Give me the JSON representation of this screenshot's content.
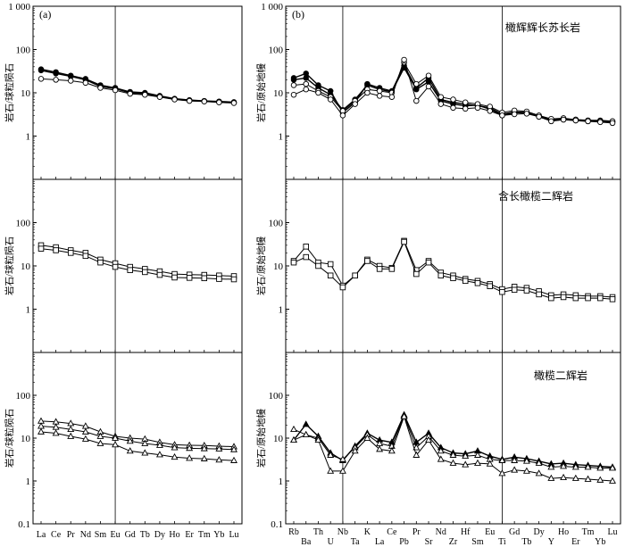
{
  "chart_data": {
    "type": "line",
    "panels_left_tag": "(a)",
    "panels_right_tag": "(b)",
    "ylim": [
      0.1,
      1000
    ],
    "yscale": "log",
    "yticks": [
      "1 000",
      "100",
      "10",
      "1",
      "0.1"
    ],
    "left_ylabel": "岩石/球粒陨石",
    "right_ylabel": "岩石/原始地幔",
    "left_x": [
      "La",
      "Ce",
      "Pr",
      "Nd",
      "Sm",
      "Eu",
      "Gd",
      "Tb",
      "Dy",
      "Ho",
      "Er",
      "Tm",
      "Yb",
      "Lu"
    ],
    "right_x": [
      "Rb",
      "Ba",
      "Th",
      "U",
      "Nb",
      "Ta",
      "K",
      "La",
      "Ce",
      "Pb",
      "Pr",
      "Sr",
      "Nd",
      "Zr",
      "Hf",
      "Sm",
      "Eu",
      "Ti",
      "Gd",
      "Tb",
      "Dy",
      "Y",
      "Ho",
      "Er",
      "Tm",
      "Yb",
      "Lu"
    ],
    "rows": [
      {
        "rock": "橄辉辉长苏长岩",
        "marker": "circle",
        "left_series": [
          {
            "values": [
              35,
              30,
              25,
              21,
              15,
              13,
              10.5,
              10,
              8.5,
              7.3,
              6.8,
              6.5,
              6.3,
              6.1
            ],
            "filled": true
          },
          {
            "values": [
              33,
              28,
              24,
              20,
              14,
              12.5,
              10,
              9.5,
              8.2,
              7.1,
              6.6,
              6.4,
              6.1,
              5.9
            ],
            "filled": true
          },
          {
            "values": [
              21,
              20,
              19,
              17,
              13,
              11.5,
              9.5,
              9,
              8,
              7,
              6.5,
              6.3,
              6,
              5.8
            ],
            "filled": false
          }
        ],
        "right_series": [
          {
            "values": [
              22,
              28,
              15,
              11,
              3.5,
              6,
              16,
              13,
              11,
              42,
              13,
              22,
              7,
              6,
              5.5,
              5,
              4.5,
              3.2,
              3.6,
              3.5,
              2.8,
              2.3,
              2.4,
              2.3,
              2.2,
              2.2,
              2.1
            ],
            "filled": true
          },
          {
            "values": [
              20,
              22,
              13,
              9,
              4,
              7,
              15,
              12,
              10.5,
              38,
              12,
              18,
              6.5,
              5.5,
              5,
              5.2,
              4.2,
              3.0,
              3.5,
              3.4,
              2.9,
              2.4,
              2.5,
              2.4,
              2.3,
              2.3,
              2.2
            ],
            "filled": true
          },
          {
            "values": [
              15,
              16,
              11,
              8,
              3.8,
              6.5,
              12,
              11,
              10,
              50,
              16,
              25,
              8,
              7,
              6,
              5.5,
              4.8,
              3.5,
              3.9,
              3.7,
              3.0,
              2.5,
              2.6,
              2.4,
              2.3,
              2.2,
              2.2
            ],
            "filled": false
          },
          {
            "values": [
              9,
              12,
              10,
              7,
              3.0,
              5.5,
              10,
              8.5,
              8,
              58,
              6.5,
              14,
              5.5,
              4.5,
              4.3,
              4.5,
              3.8,
              3.0,
              3.2,
              3.3,
              2.8,
              2.2,
              2.4,
              2.3,
              2.2,
              2.1,
              2.0
            ],
            "filled": false
          }
        ]
      },
      {
        "rock": "含长橄榄二辉岩",
        "marker": "square",
        "left_series": [
          {
            "values": [
              30,
              27,
              23,
              20,
              14,
              11.5,
              9.5,
              8.5,
              7.5,
              6.5,
              6.3,
              6.2,
              6,
              5.8
            ],
            "filled": false
          },
          {
            "values": [
              25,
              23,
              20,
              17,
              12,
              9.5,
              8,
              7.2,
              6.2,
              5.4,
              5.3,
              5.2,
              5,
              4.9
            ],
            "filled": false
          }
        ],
        "right_series": [
          {
            "values": [
              13,
              28,
              12,
              11,
              3.5,
              6,
              14,
              10,
              9,
              38,
              8,
              13,
              7,
              6,
              5,
              4.5,
              3.8,
              2.9,
              3.3,
              3.1,
              2.6,
              2.1,
              2.2,
              2.1,
              2.0,
              2.0,
              1.9
            ],
            "filled": false
          },
          {
            "values": [
              12,
              16,
              10,
              6,
              3.2,
              6,
              13,
              8.5,
              8.5,
              36,
              6.5,
              12,
              6,
              5.2,
              4.5,
              4,
              3.4,
              2.5,
              2.8,
              2.7,
              2.2,
              1.8,
              1.9,
              1.8,
              1.8,
              1.8,
              1.7
            ],
            "filled": false
          }
        ]
      },
      {
        "rock": "橄榄二辉岩",
        "marker": "triangle",
        "left_series": [
          {
            "values": [
              25,
              24,
              22,
              19,
              14,
              11,
              10,
              9.5,
              8,
              7,
              6.8,
              6.7,
              6.5,
              6.3
            ],
            "filled": false
          },
          {
            "values": [
              19,
              18,
              16,
              14,
              11,
              10,
              8.5,
              7.5,
              6.8,
              6,
              5.8,
              5.7,
              5.6,
              5.4
            ],
            "filled": false
          },
          {
            "values": [
              14,
              13,
              11,
              9.5,
              7.5,
              7,
              5,
              4.5,
              4.1,
              3.6,
              3.4,
              3.3,
              3.1,
              3.0
            ],
            "filled": false
          }
        ],
        "right_series": [
          {
            "values": [
              9,
              21,
              11,
              4.5,
              3.0,
              6.5,
              13,
              9,
              8,
              35,
              8,
              13,
              6,
              4.5,
              4.3,
              5.0,
              3.8,
              3.2,
              3.6,
              3.3,
              2.9,
              2.5,
              2.6,
              2.4,
              2.3,
              2.2,
              2.1
            ],
            "filled": true
          },
          {
            "values": [
              16,
              12,
              10,
              4,
              3.2,
              6,
              12,
              7.5,
              6.5,
              33,
              6,
              11,
              5,
              4,
              3.8,
              4,
              3.2,
              3.0,
              3.0,
              2.9,
              2.6,
              2.1,
              2.2,
              2.1,
              2.1,
              2.0,
              2.0
            ],
            "filled": false
          },
          {
            "values": [
              9,
              12,
              9,
              1.7,
              1.7,
              5,
              10,
              5.5,
              5,
              32,
              4,
              9,
              3.2,
              2.6,
              2.4,
              2.6,
              2.5,
              1.5,
              1.8,
              1.7,
              1.5,
              1.15,
              1.2,
              1.15,
              1.1,
              1.05,
              1.0
            ],
            "filled": false
          }
        ]
      }
    ]
  }
}
